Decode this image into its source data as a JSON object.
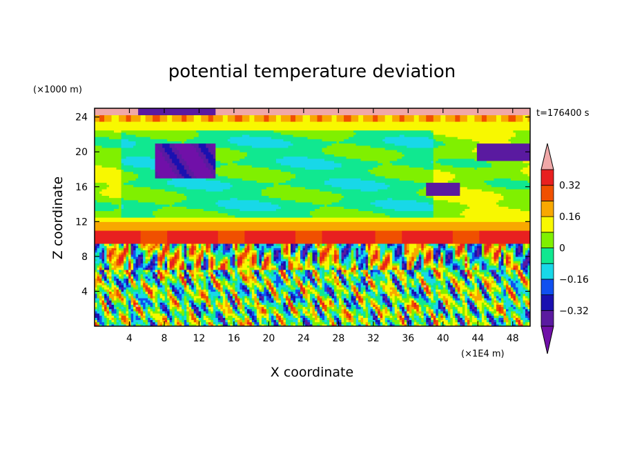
{
  "chart_data": {
    "type": "heatmap",
    "title": "potential temperature deviation",
    "xlabel": "X coordinate",
    "ylabel": "Z coordinate",
    "x_unit": "(×1E4 m)",
    "y_unit": "(×1000 m)",
    "time_label": "t=176400 s",
    "xlim": [
      0,
      50
    ],
    "ylim": [
      0,
      25
    ],
    "x_ticks": [
      4,
      8,
      12,
      16,
      20,
      24,
      28,
      32,
      36,
      40,
      44,
      48
    ],
    "y_ticks": [
      4,
      8,
      12,
      16,
      20,
      24
    ],
    "grid": false,
    "colorbar": {
      "placement": "right",
      "tick_labels": [
        "0.32",
        "0.16",
        "0",
        "−0.16",
        "−0.32"
      ],
      "tick_values": [
        0.32,
        0.16,
        0,
        -0.16,
        -0.32
      ],
      "levels": [
        {
          "min": -0.4,
          "max": -0.32,
          "color": "#5a1aa0"
        },
        {
          "min": -0.32,
          "max": -0.24,
          "color": "#1a10b0"
        },
        {
          "min": -0.24,
          "max": -0.16,
          "color": "#1050f0"
        },
        {
          "min": -0.16,
          "max": -0.08,
          "color": "#18d8e8"
        },
        {
          "min": -0.08,
          "max": 0.0,
          "color": "#10e890"
        },
        {
          "min": 0.0,
          "max": 0.08,
          "color": "#80f000"
        },
        {
          "min": 0.08,
          "max": 0.16,
          "color": "#f8f800"
        },
        {
          "min": 0.16,
          "max": 0.24,
          "color": "#f8a800"
        },
        {
          "min": 0.24,
          "max": 0.32,
          "color": "#f05000"
        },
        {
          "min": 0.32,
          "max": 0.4,
          "color": "#e82020"
        }
      ],
      "under_color": "#7010a8",
      "over_color": "#f0a8a8"
    }
  }
}
